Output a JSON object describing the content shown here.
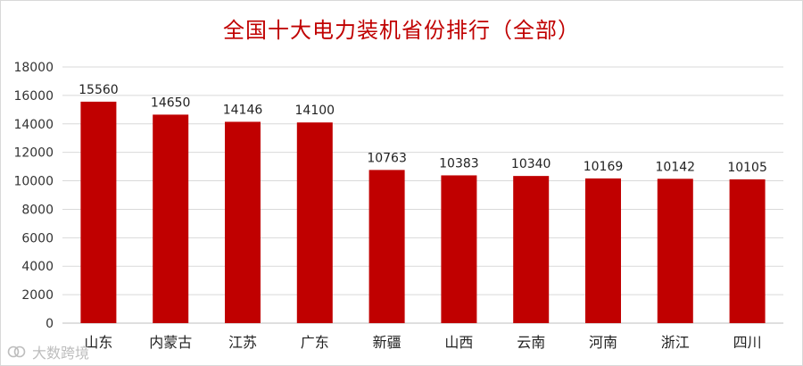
{
  "chart_data": {
    "type": "bar",
    "title": "全国十大电力装机省份排行（全部）",
    "categories": [
      "山东",
      "内蒙古",
      "江苏",
      "广东",
      "新疆",
      "山西",
      "云南",
      "河南",
      "浙江",
      "四川"
    ],
    "values": [
      15560,
      14650,
      14146,
      14100,
      10763,
      10383,
      10340,
      10169,
      10142,
      10105
    ],
    "ylim": [
      0,
      18000
    ],
    "yticks": [
      0,
      2000,
      4000,
      6000,
      8000,
      10000,
      12000,
      14000,
      16000,
      18000
    ],
    "grid": true,
    "legend": "none",
    "xlabel": "",
    "ylabel": "",
    "bar_color": "#c00000",
    "title_color": "#c00000"
  },
  "watermark": {
    "text": "大数跨境"
  }
}
